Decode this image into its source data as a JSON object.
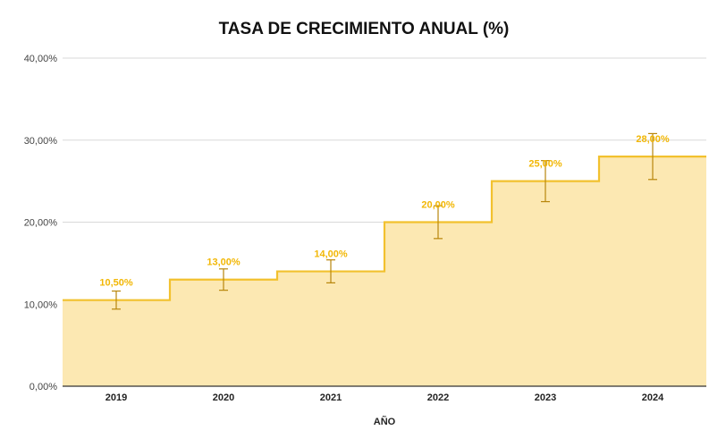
{
  "chart_data": {
    "type": "area",
    "title": "TASA DE CRECIMIENTO ANUAL (%)",
    "xlabel": "AÑO",
    "ylabel": "",
    "categories": [
      "2019",
      "2020",
      "2021",
      "2022",
      "2023",
      "2024"
    ],
    "series": [
      {
        "values": [
          10.5,
          13,
          14,
          20,
          25,
          28
        ],
        "data_labels": [
          "10,50%",
          "13,00%",
          "14,00%",
          "20,00%",
          "25,00%",
          "28,00%"
        ],
        "error_low": [
          9.4,
          11.7,
          12.6,
          18,
          22.5,
          25.2
        ],
        "error_high": [
          11.6,
          14.3,
          15.4,
          22,
          27.5,
          30.8
        ]
      }
    ],
    "step": true,
    "ylim": [
      0,
      40
    ],
    "yticks": [
      0,
      10,
      20,
      30,
      40
    ],
    "ytick_labels": [
      "0,00%",
      "10,00%",
      "20,00%",
      "30,00%",
      "40,00%"
    ],
    "grid": true,
    "legend": "none",
    "colors": {
      "line": "#f2c12e",
      "fill": "#fce8b2",
      "label": "#f2b705",
      "error": "#b8860b",
      "grid": "#d9d9d9",
      "axis": "#333333"
    }
  }
}
